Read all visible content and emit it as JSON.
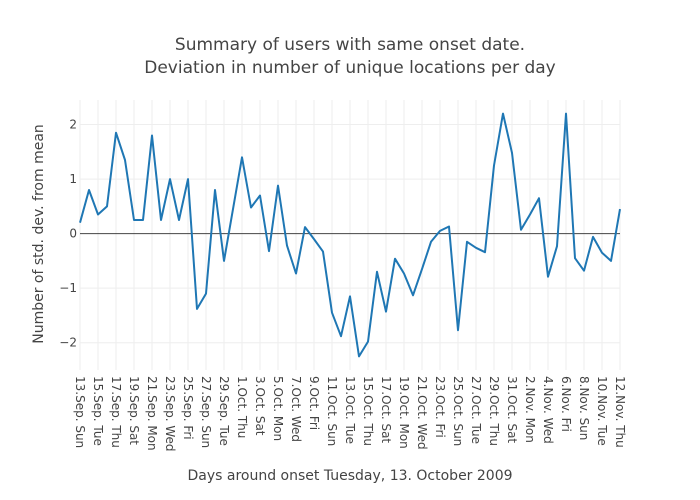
{
  "chart_data": {
    "type": "line",
    "title_lines": [
      "Summary of users with same onset date.",
      "Deviation in number of unique locations per day"
    ],
    "xlabel": "Days around onset Tuesday, 13. October 2009",
    "ylabel": "Number of std. dev. from mean",
    "x_tick_labels": [
      "13.Sep. Sun",
      "15.Sep. Tue",
      "17.Sep. Thu",
      "19.Sep. Sat",
      "21.Sep. Mon",
      "23.Sep. Wed",
      "25.Sep. Fri",
      "27.Sep. Sun",
      "29.Sep. Tue",
      "1.Oct. Thu",
      "3.Oct. Sat",
      "5.Oct. Mon",
      "7.Oct. Wed",
      "9.Oct. Fri",
      "11.Oct. Sun",
      "13.Oct. Tue",
      "15.Oct. Thu",
      "17.Oct. Sat",
      "19.Oct. Mon",
      "21.Oct. Wed",
      "23.Oct. Fri",
      "25.Oct. Sun",
      "27.Oct. Tue",
      "29.Oct. Thu",
      "31.Oct. Sat",
      "2.Nov. Mon",
      "4.Nov. Wed",
      "6.Nov. Fri",
      "8.Nov. Sun",
      "10.Nov. Tue",
      "12.Nov. Thu"
    ],
    "y_ticks": [
      -2,
      -1,
      0,
      1,
      2
    ],
    "y_tick_labels": [
      "−2",
      "−1",
      "0",
      "1",
      "2"
    ],
    "ylim": [
      -2.5,
      2.45
    ],
    "grid": true,
    "zero_line": true,
    "line_color": "#1f77b4",
    "grid_color": "#eeeeee",
    "zero_line_color": "#444444",
    "series": [
      {
        "values": [
          0.2,
          0.8,
          0.35,
          0.5,
          1.85,
          1.35,
          0.25,
          0.25,
          1.8,
          0.25,
          1.0,
          0.25,
          1.0,
          -1.38,
          -1.1,
          0.8,
          -0.5,
          0.45,
          1.4,
          0.48,
          0.7,
          -0.32,
          0.88,
          -0.22,
          -0.73,
          0.12,
          -0.1,
          -0.33,
          -1.45,
          -1.88,
          -1.15,
          -2.25,
          -1.98,
          -0.7,
          -1.43,
          -0.46,
          -0.73,
          -1.13,
          -0.65,
          -0.15,
          0.05,
          0.13,
          -1.77,
          -0.15,
          -0.26,
          -0.34,
          1.25,
          2.2,
          1.48,
          0.07,
          0.35,
          0.65,
          -0.79,
          -0.23,
          2.2,
          -0.45,
          -0.68,
          -0.06,
          -0.35,
          -0.5,
          0.45
        ]
      }
    ]
  }
}
